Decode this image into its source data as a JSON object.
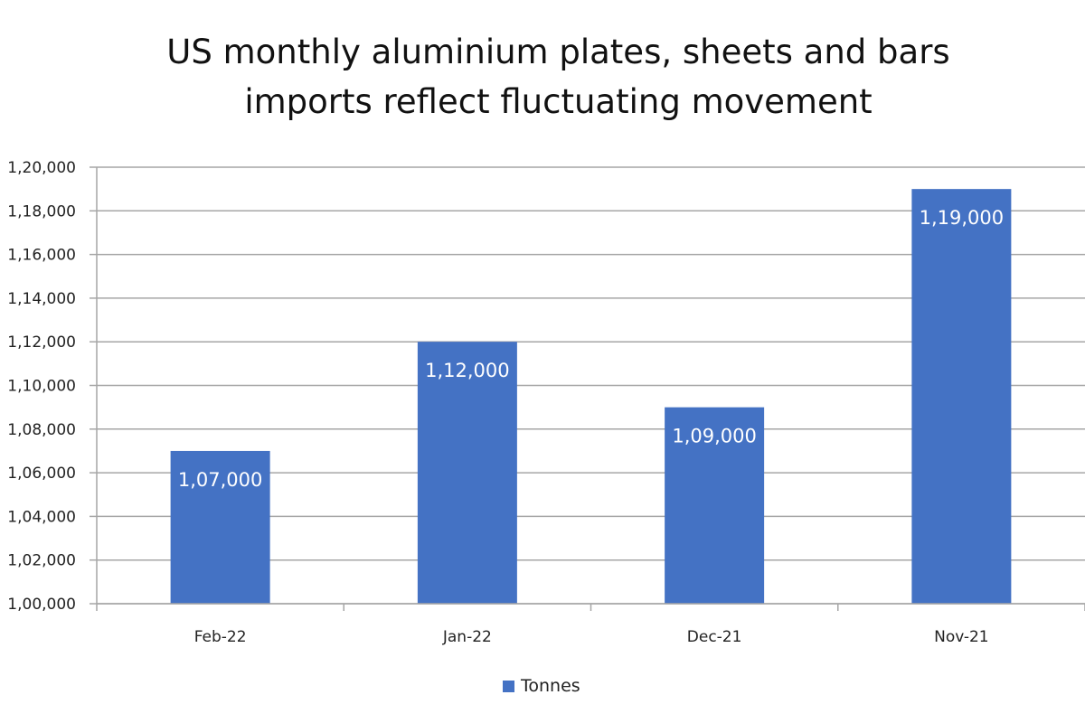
{
  "chart_data": {
    "type": "bar",
    "title_lines": [
      "US monthly aluminium plates, sheets and bars",
      "imports reflect fluctuating movement"
    ],
    "categories": [
      "Feb-22",
      "Jan-22",
      "Dec-21",
      "Nov-21"
    ],
    "series": [
      {
        "name": "Tonnes",
        "values": [
          107000,
          112000,
          109000,
          119000
        ],
        "data_labels": [
          "1,07,000",
          "1,12,000",
          "1,09,000",
          "1,19,000"
        ],
        "color": "#4472C4"
      }
    ],
    "ylim": [
      100000,
      120000
    ],
    "y_ticks": [
      100000,
      102000,
      104000,
      106000,
      108000,
      110000,
      112000,
      114000,
      116000,
      118000,
      120000
    ],
    "y_tick_labels": [
      "1,00,000",
      "1,02,000",
      "1,04,000",
      "1,06,000",
      "1,08,000",
      "1,10,000",
      "1,12,000",
      "1,14,000",
      "1,16,000",
      "1,18,000",
      "1,20,000"
    ],
    "grid": true,
    "legend_position": "bottom"
  }
}
